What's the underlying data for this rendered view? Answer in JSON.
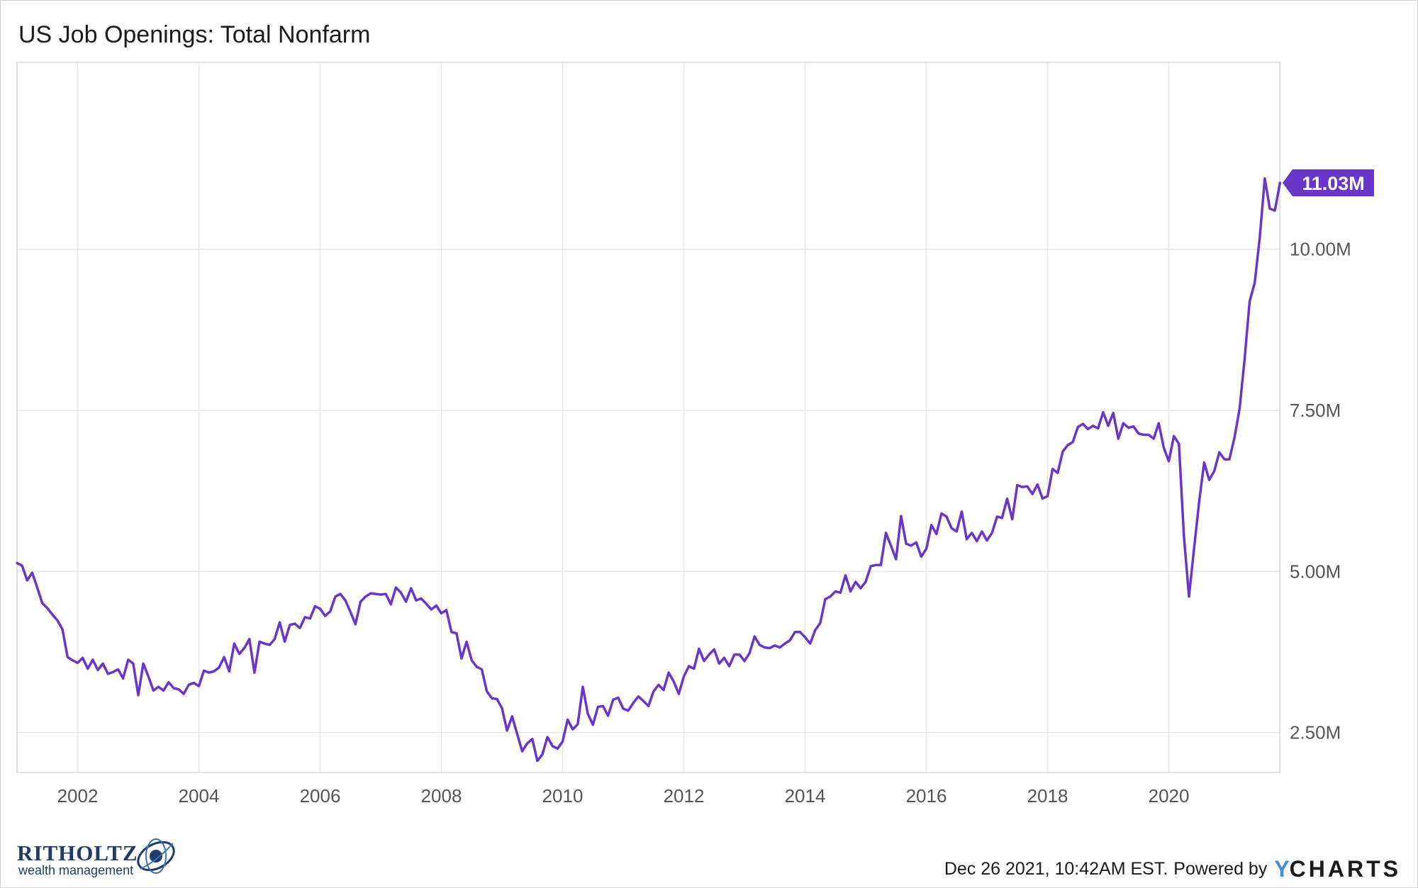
{
  "chart_data": {
    "type": "line",
    "title": "US Job Openings: Total Nonfarm",
    "xlabel": "",
    "ylabel": "",
    "x_range": [
      2001.0,
      2021.83
    ],
    "ylim": [
      1.88,
      12.9
    ],
    "y_ticks": [
      2.5,
      5.0,
      7.5,
      10.0
    ],
    "y_tick_labels": [
      "2.50M",
      "5.00M",
      "7.50M",
      "10.00M"
    ],
    "x_ticks": [
      2002,
      2004,
      2006,
      2008,
      2010,
      2012,
      2014,
      2016,
      2018,
      2020
    ],
    "x_tick_labels": [
      "2002",
      "2004",
      "2006",
      "2008",
      "2010",
      "2012",
      "2014",
      "2016",
      "2018",
      "2020"
    ],
    "grid": true,
    "units": "millions",
    "last_value_label": "11.03M",
    "series": [
      {
        "name": "US Job Openings: Total Nonfarm",
        "color": "#6a35c9",
        "start": [
          2001,
          1
        ],
        "frequency": "monthly",
        "values": [
          5.13,
          5.09,
          4.86,
          4.98,
          4.75,
          4.51,
          4.43,
          4.33,
          4.24,
          4.1,
          3.67,
          3.62,
          3.58,
          3.66,
          3.49,
          3.63,
          3.47,
          3.57,
          3.41,
          3.44,
          3.48,
          3.34,
          3.63,
          3.57,
          3.08,
          3.57,
          3.37,
          3.15,
          3.21,
          3.15,
          3.28,
          3.19,
          3.17,
          3.1,
          3.24,
          3.27,
          3.22,
          3.46,
          3.43,
          3.45,
          3.51,
          3.67,
          3.45,
          3.88,
          3.72,
          3.81,
          3.95,
          3.43,
          3.91,
          3.88,
          3.86,
          3.95,
          4.21,
          3.91,
          4.17,
          4.19,
          4.12,
          4.29,
          4.27,
          4.46,
          4.42,
          4.31,
          4.38,
          4.61,
          4.65,
          4.55,
          4.37,
          4.18,
          4.53,
          4.61,
          4.66,
          4.65,
          4.64,
          4.65,
          4.49,
          4.75,
          4.67,
          4.53,
          4.74,
          4.55,
          4.58,
          4.5,
          4.41,
          4.47,
          4.35,
          4.4,
          4.06,
          4.04,
          3.65,
          3.91,
          3.62,
          3.52,
          3.48,
          3.14,
          3.03,
          3.02,
          2.88,
          2.53,
          2.75,
          2.48,
          2.21,
          2.33,
          2.4,
          2.06,
          2.16,
          2.43,
          2.29,
          2.25,
          2.36,
          2.7,
          2.55,
          2.63,
          3.21,
          2.79,
          2.62,
          2.9,
          2.91,
          2.76,
          3.01,
          3.04,
          2.87,
          2.84,
          2.96,
          3.06,
          2.99,
          2.91,
          3.14,
          3.24,
          3.16,
          3.43,
          3.29,
          3.1,
          3.37,
          3.53,
          3.49,
          3.8,
          3.61,
          3.71,
          3.79,
          3.57,
          3.66,
          3.53,
          3.71,
          3.71,
          3.61,
          3.73,
          3.99,
          3.86,
          3.82,
          3.81,
          3.85,
          3.82,
          3.88,
          3.93,
          4.06,
          4.06,
          3.98,
          3.88,
          4.09,
          4.2,
          4.57,
          4.61,
          4.69,
          4.67,
          4.94,
          4.69,
          4.84,
          4.74,
          4.84,
          5.08,
          5.1,
          5.1,
          5.6,
          5.4,
          5.19,
          5.86,
          5.43,
          5.4,
          5.45,
          5.23,
          5.35,
          5.72,
          5.58,
          5.9,
          5.85,
          5.67,
          5.62,
          5.93,
          5.5,
          5.6,
          5.47,
          5.62,
          5.48,
          5.6,
          5.85,
          5.83,
          6.13,
          5.81,
          6.34,
          6.31,
          6.32,
          6.2,
          6.35,
          6.13,
          6.17,
          6.59,
          6.53,
          6.86,
          6.96,
          7.01,
          7.24,
          7.29,
          7.21,
          7.26,
          7.22,
          7.47,
          7.26,
          7.46,
          7.06,
          7.3,
          7.23,
          7.25,
          7.14,
          7.12,
          7.12,
          7.06,
          7.3,
          6.92,
          6.71,
          7.1,
          6.98,
          5.54,
          4.61,
          5.36,
          6.08,
          6.69,
          6.42,
          6.56,
          6.85,
          6.74,
          6.74,
          7.08,
          7.52,
          8.29,
          9.19,
          9.48,
          10.18,
          11.1,
          10.63,
          10.6,
          11.03
        ]
      }
    ]
  },
  "logo": {
    "name": "RITHOLTZ",
    "tagline": "wealth management"
  },
  "footer": {
    "timestamp": "Dec 26 2021, 10:42AM EST.",
    "powered_by": "Powered by",
    "brand_first": "Y",
    "brand_rest": "CHARTS"
  }
}
